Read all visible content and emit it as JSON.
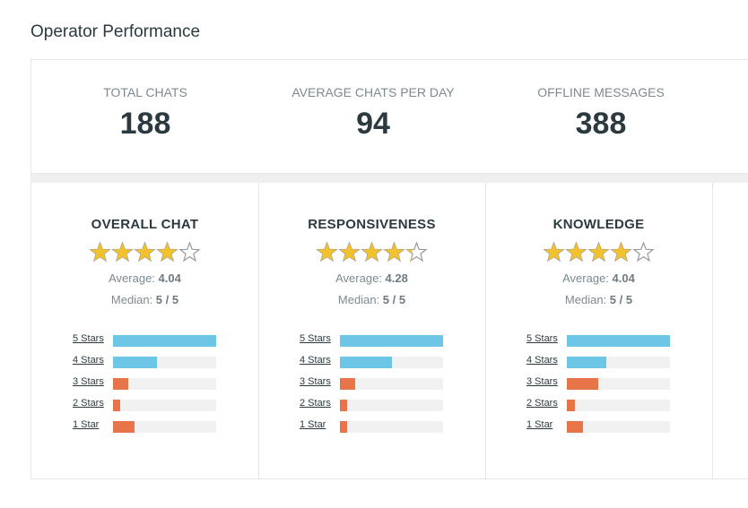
{
  "header": {
    "title": "Operator Performance"
  },
  "stats": [
    {
      "label": "TOTAL CHATS",
      "value": 188
    },
    {
      "label": "AVERAGE CHATS PER DAY",
      "value": 94
    },
    {
      "label": "OFFLINE MESSAGES",
      "value": 388
    }
  ],
  "ratings": [
    {
      "title": "OVERALL CHAT",
      "average_label": "Average:",
      "average": 4.04,
      "median_label": "Median:",
      "median": "5 / 5",
      "bars": [
        {
          "label": "5 Stars",
          "value": 100
        },
        {
          "label": "4 Stars",
          "value": 43
        },
        {
          "label": "3 Stars",
          "value": 15
        },
        {
          "label": "2 Stars",
          "value": 7
        },
        {
          "label": "1 Star",
          "value": 21
        }
      ]
    },
    {
      "title": "RESPONSIVENESS",
      "average_label": "Average:",
      "average": 4.28,
      "median_label": "Median:",
      "median": "5 / 5",
      "bars": [
        {
          "label": "5 Stars",
          "value": 100
        },
        {
          "label": "4 Stars",
          "value": 50
        },
        {
          "label": "3 Stars",
          "value": 15
        },
        {
          "label": "2 Stars",
          "value": 7
        },
        {
          "label": "1 Star",
          "value": 7
        }
      ]
    },
    {
      "title": "KNOWLEDGE",
      "average_label": "Average:",
      "average": 4.04,
      "median_label": "Median:",
      "median": "5 / 5",
      "bars": [
        {
          "label": "5 Stars",
          "value": 100
        },
        {
          "label": "4 Stars",
          "value": 38
        },
        {
          "label": "3 Stars",
          "value": 30
        },
        {
          "label": "2 Stars",
          "value": 8
        },
        {
          "label": "1 Star",
          "value": 16
        }
      ]
    }
  ]
}
